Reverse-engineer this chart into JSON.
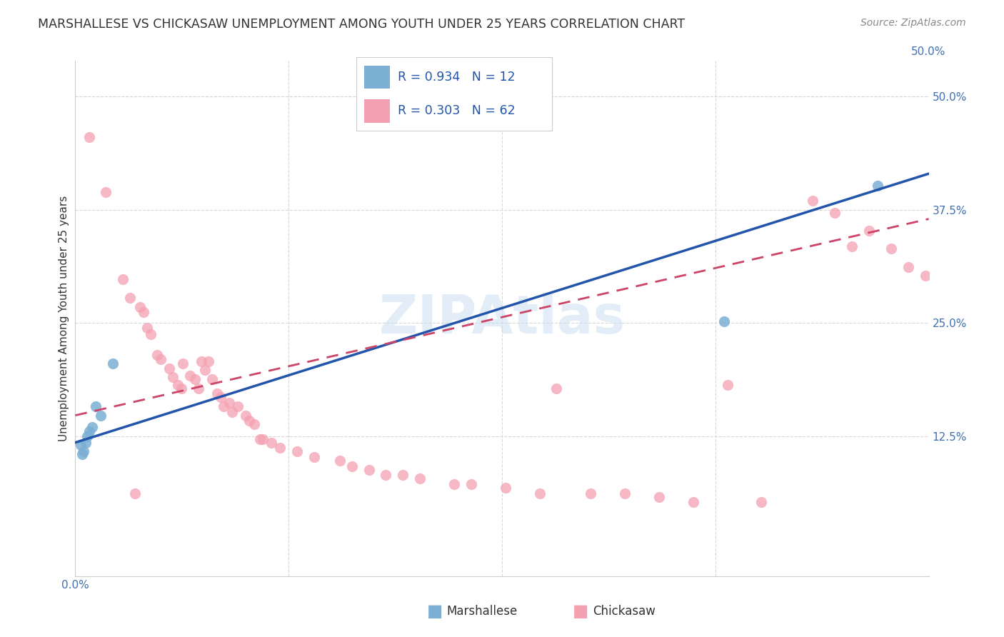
{
  "title": "MARSHALLESE VS CHICKASAW UNEMPLOYMENT AMONG YOUTH UNDER 25 YEARS CORRELATION CHART",
  "source": "Source: ZipAtlas.com",
  "ylabel": "Unemployment Among Youth under 25 years",
  "xlim": [
    0.0,
    0.5
  ],
  "ylim": [
    -0.03,
    0.54
  ],
  "xticks": [
    0.0,
    0.125,
    0.25,
    0.375,
    0.5
  ],
  "yticks": [
    0.125,
    0.25,
    0.375,
    0.5
  ],
  "ytick_labels": [
    "12.5%",
    "25.0%",
    "37.5%",
    "50.0%"
  ],
  "background_color": "#ffffff",
  "grid_color": "#d8d8d8",
  "marshallese_color": "#7bafd4",
  "chickasaw_color": "#f4a0b0",
  "marshallese_line_color": "#2255aa",
  "chickasaw_line_color": "#cc4466",
  "marshallese_points": [
    [
      0.003,
      0.115
    ],
    [
      0.004,
      0.105
    ],
    [
      0.005,
      0.108
    ],
    [
      0.006,
      0.118
    ],
    [
      0.007,
      0.125
    ],
    [
      0.008,
      0.13
    ],
    [
      0.01,
      0.135
    ],
    [
      0.012,
      0.158
    ],
    [
      0.015,
      0.148
    ],
    [
      0.022,
      0.205
    ],
    [
      0.38,
      0.252
    ],
    [
      0.47,
      0.402
    ]
  ],
  "chickasaw_points": [
    [
      0.008,
      0.455
    ],
    [
      0.018,
      0.395
    ],
    [
      0.028,
      0.298
    ],
    [
      0.032,
      0.278
    ],
    [
      0.038,
      0.268
    ],
    [
      0.04,
      0.262
    ],
    [
      0.042,
      0.245
    ],
    [
      0.044,
      0.238
    ],
    [
      0.048,
      0.215
    ],
    [
      0.05,
      0.21
    ],
    [
      0.055,
      0.2
    ],
    [
      0.057,
      0.19
    ],
    [
      0.06,
      0.182
    ],
    [
      0.062,
      0.178
    ],
    [
      0.063,
      0.205
    ],
    [
      0.067,
      0.192
    ],
    [
      0.07,
      0.188
    ],
    [
      0.072,
      0.178
    ],
    [
      0.074,
      0.208
    ],
    [
      0.076,
      0.198
    ],
    [
      0.078,
      0.208
    ],
    [
      0.08,
      0.188
    ],
    [
      0.083,
      0.172
    ],
    [
      0.085,
      0.168
    ],
    [
      0.087,
      0.158
    ],
    [
      0.09,
      0.162
    ],
    [
      0.092,
      0.152
    ],
    [
      0.095,
      0.158
    ],
    [
      0.1,
      0.148
    ],
    [
      0.102,
      0.142
    ],
    [
      0.105,
      0.138
    ],
    [
      0.108,
      0.122
    ],
    [
      0.11,
      0.122
    ],
    [
      0.115,
      0.118
    ],
    [
      0.12,
      0.112
    ],
    [
      0.13,
      0.108
    ],
    [
      0.14,
      0.102
    ],
    [
      0.155,
      0.098
    ],
    [
      0.162,
      0.092
    ],
    [
      0.172,
      0.088
    ],
    [
      0.182,
      0.082
    ],
    [
      0.192,
      0.082
    ],
    [
      0.202,
      0.078
    ],
    [
      0.222,
      0.072
    ],
    [
      0.232,
      0.072
    ],
    [
      0.252,
      0.068
    ],
    [
      0.272,
      0.062
    ],
    [
      0.282,
      0.178
    ],
    [
      0.302,
      0.062
    ],
    [
      0.322,
      0.062
    ],
    [
      0.342,
      0.058
    ],
    [
      0.362,
      0.052
    ],
    [
      0.382,
      0.182
    ],
    [
      0.402,
      0.052
    ],
    [
      0.432,
      0.385
    ],
    [
      0.445,
      0.372
    ],
    [
      0.455,
      0.335
    ],
    [
      0.465,
      0.352
    ],
    [
      0.478,
      0.332
    ],
    [
      0.488,
      0.312
    ],
    [
      0.498,
      0.302
    ],
    [
      0.035,
      0.062
    ]
  ],
  "marshallese_line": [
    [
      0.0,
      0.118
    ],
    [
      0.5,
      0.415
    ]
  ],
  "chickasaw_line": [
    [
      0.0,
      0.148
    ],
    [
      0.5,
      0.365
    ]
  ],
  "title_fontsize": 12.5,
  "axis_label_fontsize": 11,
  "tick_fontsize": 11,
  "source_fontsize": 10
}
